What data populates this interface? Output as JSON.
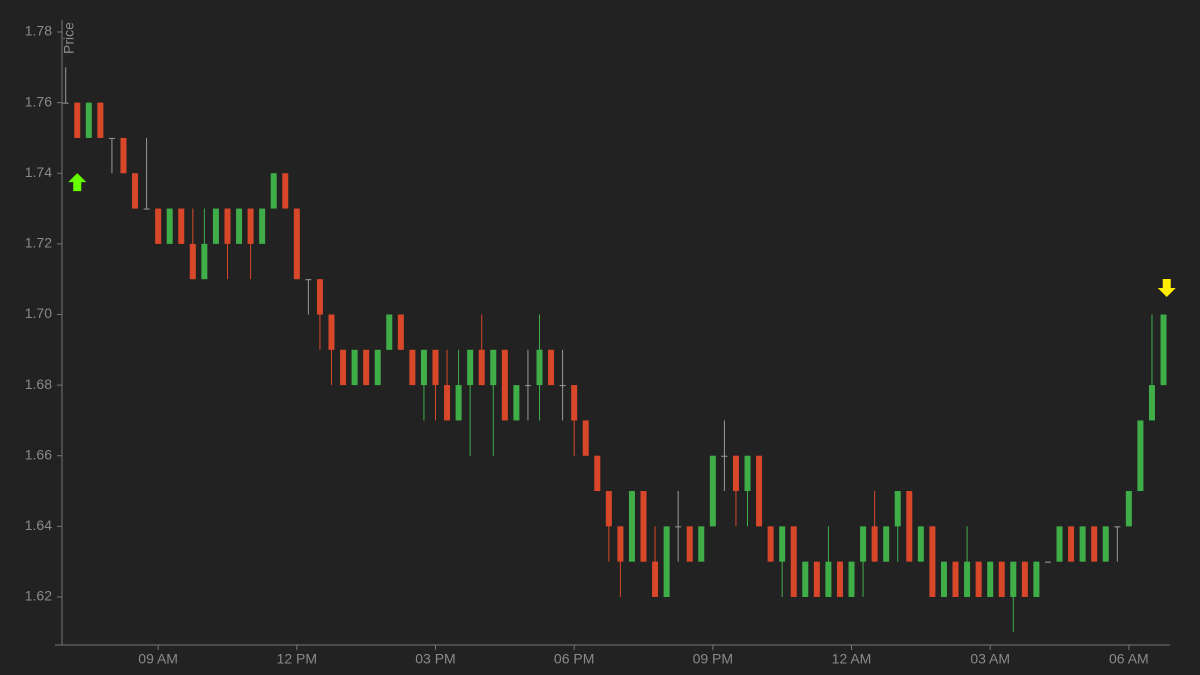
{
  "chart_data": {
    "type": "candlestick",
    "y_label": "Price",
    "up_color": "#3fae49",
    "down_color": "#d9472b",
    "flat_color": "#9a9a9a",
    "xlim": [
      6.92,
      30.89
    ],
    "ylim": [
      1.6064,
      1.7834
    ],
    "xticks": [
      {
        "value": 9,
        "label": "09 AM"
      },
      {
        "value": 12,
        "label": "12 PM"
      },
      {
        "value": 15,
        "label": "03 PM"
      },
      {
        "value": 18,
        "label": "06 PM"
      },
      {
        "value": 21,
        "label": "09 PM"
      },
      {
        "value": 24,
        "label": "12 AM"
      },
      {
        "value": 27,
        "label": "03 AM"
      },
      {
        "value": 30,
        "label": "06 AM"
      }
    ],
    "yticks": [
      1.62,
      1.64,
      1.66,
      1.68,
      {
        "value": 1.7,
        "label": "1.70"
      },
      1.72,
      1.74,
      1.76,
      1.78
    ],
    "x": [
      7,
      7.25,
      7.5,
      7.75,
      8,
      8.25,
      8.5,
      8.75,
      9,
      9.25,
      9.5,
      9.75,
      10,
      10.25,
      10.5,
      10.75,
      11,
      11.25,
      11.5,
      11.75,
      12,
      12.25,
      12.5,
      12.75,
      13,
      13.25,
      13.5,
      13.75,
      14,
      14.25,
      14.5,
      14.75,
      15,
      15.25,
      15.5,
      15.75,
      16,
      16.25,
      16.5,
      16.75,
      17,
      17.25,
      17.5,
      17.75,
      18,
      18.25,
      18.5,
      18.75,
      19,
      19.25,
      19.5,
      19.75,
      20,
      20.25,
      20.5,
      20.75,
      21,
      21.25,
      21.5,
      21.75,
      22,
      22.25,
      22.5,
      22.75,
      23,
      23.25,
      23.5,
      23.75,
      24,
      24.25,
      24.5,
      24.75,
      25,
      25.25,
      25.5,
      25.75,
      26,
      26.25,
      26.5,
      26.75,
      27,
      27.25,
      27.5,
      27.75,
      28,
      28.25,
      28.5,
      28.75,
      29,
      29.25,
      29.5,
      29.75,
      30,
      30.25,
      30.5,
      30.75
    ],
    "open": [
      1.76,
      1.76,
      1.75,
      1.76,
      1.75,
      1.75,
      1.74,
      1.73,
      1.73,
      1.72,
      1.73,
      1.72,
      1.71,
      1.72,
      1.73,
      1.72,
      1.73,
      1.72,
      1.73,
      1.74,
      1.73,
      1.71,
      1.71,
      1.7,
      1.69,
      1.68,
      1.69,
      1.68,
      1.69,
      1.7,
      1.69,
      1.68,
      1.69,
      1.68,
      1.67,
      1.68,
      1.69,
      1.68,
      1.69,
      1.67,
      1.68,
      1.68,
      1.69,
      1.68,
      1.68,
      1.67,
      1.66,
      1.65,
      1.64,
      1.63,
      1.65,
      1.63,
      1.62,
      1.64,
      1.64,
      1.63,
      1.64,
      1.66,
      1.66,
      1.65,
      1.66,
      1.64,
      1.63,
      1.64,
      1.62,
      1.63,
      1.62,
      1.63,
      1.62,
      1.63,
      1.64,
      1.63,
      1.64,
      1.65,
      1.63,
      1.64,
      1.62,
      1.63,
      1.62,
      1.63,
      1.62,
      1.63,
      1.62,
      1.63,
      1.62,
      1.63,
      1.63,
      1.64,
      1.63,
      1.64,
      1.63,
      1.64,
      1.64,
      1.65,
      1.67,
      1.68
    ],
    "high": [
      1.77,
      1.76,
      1.76,
      1.76,
      1.75,
      1.75,
      1.74,
      1.75,
      1.73,
      1.73,
      1.73,
      1.73,
      1.73,
      1.73,
      1.73,
      1.73,
      1.73,
      1.73,
      1.74,
      1.74,
      1.73,
      1.71,
      1.71,
      1.7,
      1.69,
      1.69,
      1.69,
      1.69,
      1.7,
      1.7,
      1.69,
      1.69,
      1.69,
      1.69,
      1.69,
      1.69,
      1.7,
      1.69,
      1.69,
      1.68,
      1.69,
      1.7,
      1.69,
      1.69,
      1.68,
      1.67,
      1.66,
      1.65,
      1.64,
      1.65,
      1.65,
      1.64,
      1.64,
      1.65,
      1.64,
      1.64,
      1.66,
      1.67,
      1.66,
      1.66,
      1.66,
      1.64,
      1.64,
      1.64,
      1.63,
      1.63,
      1.64,
      1.63,
      1.63,
      1.64,
      1.65,
      1.64,
      1.65,
      1.65,
      1.64,
      1.64,
      1.63,
      1.63,
      1.64,
      1.63,
      1.63,
      1.63,
      1.63,
      1.63,
      1.63,
      1.63,
      1.64,
      1.64,
      1.64,
      1.64,
      1.64,
      1.64,
      1.65,
      1.67,
      1.7,
      1.7
    ],
    "low": [
      1.76,
      1.75,
      1.75,
      1.75,
      1.74,
      1.74,
      1.73,
      1.73,
      1.72,
      1.72,
      1.72,
      1.71,
      1.71,
      1.72,
      1.71,
      1.72,
      1.71,
      1.72,
      1.73,
      1.73,
      1.71,
      1.7,
      1.69,
      1.68,
      1.68,
      1.68,
      1.68,
      1.68,
      1.69,
      1.69,
      1.68,
      1.67,
      1.67,
      1.67,
      1.67,
      1.66,
      1.68,
      1.66,
      1.67,
      1.67,
      1.67,
      1.67,
      1.68,
      1.67,
      1.66,
      1.66,
      1.65,
      1.63,
      1.62,
      1.63,
      1.63,
      1.62,
      1.62,
      1.63,
      1.63,
      1.63,
      1.64,
      1.65,
      1.64,
      1.64,
      1.64,
      1.63,
      1.62,
      1.62,
      1.62,
      1.62,
      1.62,
      1.62,
      1.62,
      1.62,
      1.63,
      1.63,
      1.63,
      1.63,
      1.63,
      1.62,
      1.62,
      1.62,
      1.62,
      1.62,
      1.62,
      1.62,
      1.61,
      1.62,
      1.62,
      1.63,
      1.63,
      1.63,
      1.63,
      1.63,
      1.63,
      1.63,
      1.64,
      1.65,
      1.67,
      1.68
    ],
    "close": [
      1.76,
      1.75,
      1.76,
      1.75,
      1.75,
      1.74,
      1.73,
      1.73,
      1.72,
      1.73,
      1.72,
      1.71,
      1.72,
      1.73,
      1.72,
      1.73,
      1.72,
      1.73,
      1.74,
      1.73,
      1.71,
      1.71,
      1.7,
      1.69,
      1.68,
      1.69,
      1.68,
      1.69,
      1.7,
      1.69,
      1.68,
      1.69,
      1.68,
      1.67,
      1.68,
      1.69,
      1.68,
      1.69,
      1.67,
      1.68,
      1.68,
      1.69,
      1.68,
      1.68,
      1.67,
      1.66,
      1.65,
      1.64,
      1.63,
      1.65,
      1.63,
      1.62,
      1.64,
      1.64,
      1.63,
      1.64,
      1.66,
      1.66,
      1.65,
      1.66,
      1.64,
      1.63,
      1.64,
      1.62,
      1.63,
      1.62,
      1.63,
      1.62,
      1.63,
      1.64,
      1.63,
      1.64,
      1.65,
      1.63,
      1.64,
      1.62,
      1.63,
      1.62,
      1.63,
      1.62,
      1.63,
      1.62,
      1.63,
      1.62,
      1.63,
      1.63,
      1.64,
      1.63,
      1.64,
      1.63,
      1.64,
      1.64,
      1.65,
      1.67,
      1.68,
      1.7
    ],
    "markers": [
      {
        "x": 7.25,
        "y": 1.7375,
        "direction": "up",
        "color": "#66ff00"
      },
      {
        "x": 30.82,
        "y": 1.7075,
        "direction": "down",
        "color": "#ffee00"
      }
    ]
  }
}
